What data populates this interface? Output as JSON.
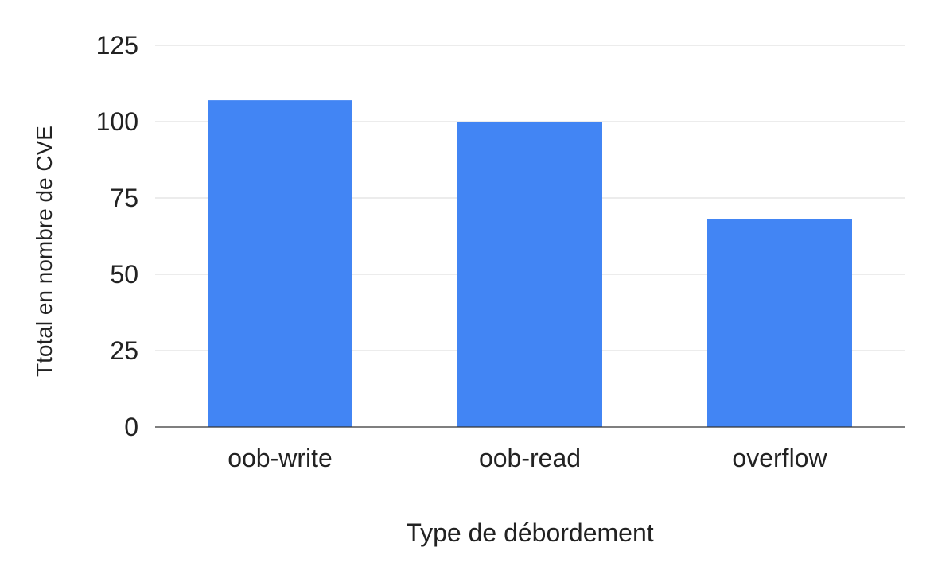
{
  "chart_data": {
    "type": "bar",
    "title": "",
    "xlabel": "Type de débordement",
    "ylabel": "Ttotal en nombre de CVE",
    "categories": [
      "oob-write",
      "oob-read",
      "overflow"
    ],
    "values": [
      107,
      100,
      68
    ],
    "ylim": [
      0,
      125
    ],
    "yticks": [
      0,
      25,
      50,
      75,
      100,
      125
    ],
    "grid": true,
    "legend": "none",
    "bar_color": "#4285f4",
    "gridline_color": "#d9d9d9",
    "axis_color": "#333333"
  }
}
